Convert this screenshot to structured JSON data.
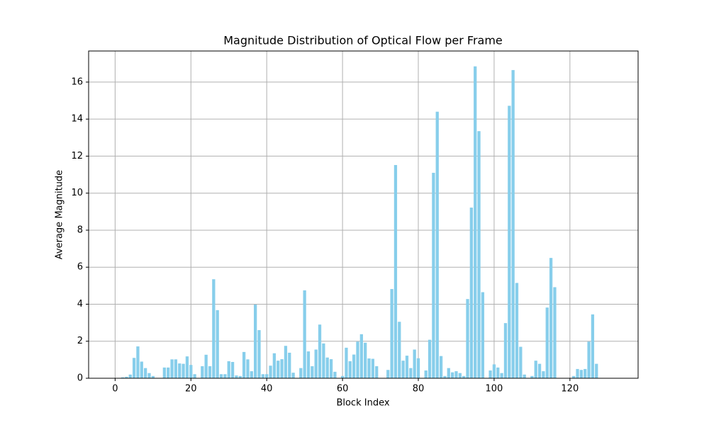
{
  "chart_data": {
    "type": "bar",
    "title": "Magnitude Distribution of Optical Flow per Frame",
    "x_label": "Block Index",
    "y_label": "Average Magnitude",
    "color": "#87ceeb",
    "grid": true,
    "x": [
      0,
      1,
      2,
      3,
      4,
      5,
      6,
      7,
      8,
      9,
      10,
      11,
      12,
      13,
      14,
      15,
      16,
      17,
      18,
      19,
      20,
      21,
      22,
      23,
      24,
      25,
      26,
      27,
      28,
      29,
      30,
      31,
      32,
      33,
      34,
      35,
      36,
      37,
      38,
      39,
      40,
      41,
      42,
      43,
      44,
      45,
      46,
      47,
      48,
      49,
      50,
      51,
      52,
      53,
      54,
      55,
      56,
      57,
      58,
      59,
      60,
      61,
      62,
      63,
      64,
      65,
      66,
      67,
      68,
      69,
      70,
      71,
      72,
      73,
      74,
      75,
      76,
      77,
      78,
      79,
      80,
      81,
      82,
      83,
      84,
      85,
      86,
      87,
      88,
      89,
      90,
      91,
      92,
      93,
      94,
      95,
      96,
      97,
      98,
      99,
      100,
      101,
      102,
      103,
      104,
      105,
      106,
      107,
      108,
      109,
      110,
      111,
      112,
      113,
      114,
      115,
      116,
      117,
      118,
      119,
      120,
      121,
      122,
      123,
      124,
      125,
      126,
      127,
      128,
      129,
      130,
      131
    ],
    "values": [
      0.02,
      0.02,
      0.05,
      0.08,
      0.2,
      1.1,
      1.72,
      0.9,
      0.55,
      0.28,
      0.12,
      0.02,
      0.02,
      0.58,
      0.58,
      1.02,
      1.02,
      0.8,
      0.78,
      1.18,
      0.72,
      0.22,
      0.02,
      0.65,
      1.27,
      0.65,
      5.35,
      3.68,
      0.22,
      0.22,
      0.92,
      0.88,
      0.15,
      0.12,
      1.42,
      1.02,
      0.38,
      3.98,
      2.6,
      0.22,
      0.22,
      0.68,
      1.35,
      0.95,
      1.03,
      1.75,
      1.38,
      0.3,
      0.02,
      0.55,
      4.75,
      1.45,
      0.65,
      1.55,
      2.9,
      1.88,
      1.12,
      1.03,
      0.35,
      0.02,
      0.12,
      1.65,
      0.92,
      1.28,
      1.98,
      2.38,
      1.92,
      1.07,
      1.05,
      0.65,
      0.02,
      0.02,
      0.45,
      4.82,
      11.52,
      3.05,
      0.95,
      1.22,
      0.55,
      1.55,
      1.08,
      0.02,
      0.42,
      2.08,
      11.1,
      14.4,
      1.2,
      0.12,
      0.55,
      0.32,
      0.38,
      0.28,
      0.12,
      4.28,
      9.22,
      16.85,
      13.35,
      4.65,
      0.02,
      0.42,
      0.75,
      0.58,
      0.28,
      2.98,
      14.72,
      16.65,
      5.15,
      1.7,
      0.2,
      0.02,
      0.12,
      0.95,
      0.78,
      0.38,
      3.82,
      6.5,
      4.92,
      0,
      0,
      0,
      0,
      0.12,
      0.5,
      0.45,
      0.5,
      1.98,
      3.45,
      0.78,
      0,
      0,
      0,
      0
    ],
    "xlim": [
      -6.99,
      137.99
    ],
    "ylim": [
      0,
      17.68
    ],
    "xticks": [
      0,
      20,
      40,
      60,
      80,
      100,
      120
    ],
    "yticks": [
      0,
      2,
      4,
      6,
      8,
      10,
      12,
      14,
      16
    ]
  }
}
